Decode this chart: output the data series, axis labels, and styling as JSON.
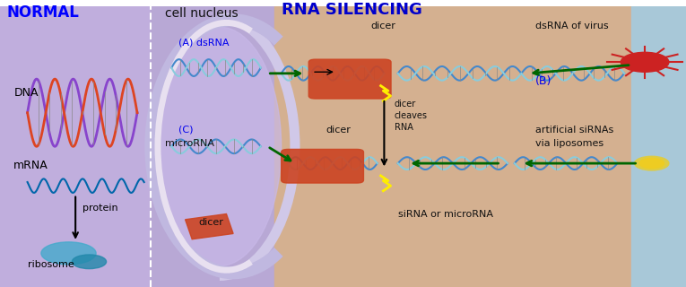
{
  "bg_left_color": "#c0aedd",
  "bg_mid_color": "#b8a8d5",
  "bg_center_color": "#d4b090",
  "bg_right_color": "#a8c8d8",
  "labels": {
    "NORMAL": [
      0.01,
      0.96,
      "#0000ff",
      12,
      true
    ],
    "cell nucleus": [
      0.24,
      0.96,
      "#111111",
      10,
      false
    ],
    "RNA SILENCING": [
      0.41,
      0.97,
      "#0000cc",
      13,
      true
    ],
    "DNA": [
      0.02,
      0.68,
      "#000000",
      9,
      false
    ],
    "mRNA": [
      0.02,
      0.42,
      "#000000",
      9,
      false
    ],
    "protein": [
      0.12,
      0.27,
      "#000000",
      8,
      false
    ],
    "ribosome": [
      0.04,
      0.07,
      "#000000",
      8,
      false
    ],
    "(A) dsRNA": [
      0.26,
      0.86,
      "#0000ee",
      8,
      false
    ],
    "(C)": [
      0.26,
      0.55,
      "#0000ee",
      8,
      false
    ],
    "microRNA": [
      0.24,
      0.5,
      "#111111",
      8,
      false
    ],
    "dicer_small": [
      0.29,
      0.22,
      "#111111",
      8,
      false
    ],
    "dicer_top": [
      0.54,
      0.92,
      "#111111",
      8,
      false
    ],
    "dicer_mid": [
      0.475,
      0.55,
      "#111111",
      8,
      false
    ],
    "dicer cleaves RNA": [
      0.575,
      0.6,
      "#111111",
      7,
      false
    ],
    "siRNA or microRNA": [
      0.58,
      0.25,
      "#111111",
      8,
      false
    ],
    "dsRNA of virus": [
      0.78,
      0.92,
      "#111111",
      8,
      false
    ],
    "(B)": [
      0.78,
      0.72,
      "#0000ee",
      9,
      false
    ],
    "artificial siRNAs": [
      0.78,
      0.55,
      "#111111",
      8,
      false
    ],
    "via liposomes": [
      0.78,
      0.5,
      "#111111",
      8,
      false
    ]
  }
}
